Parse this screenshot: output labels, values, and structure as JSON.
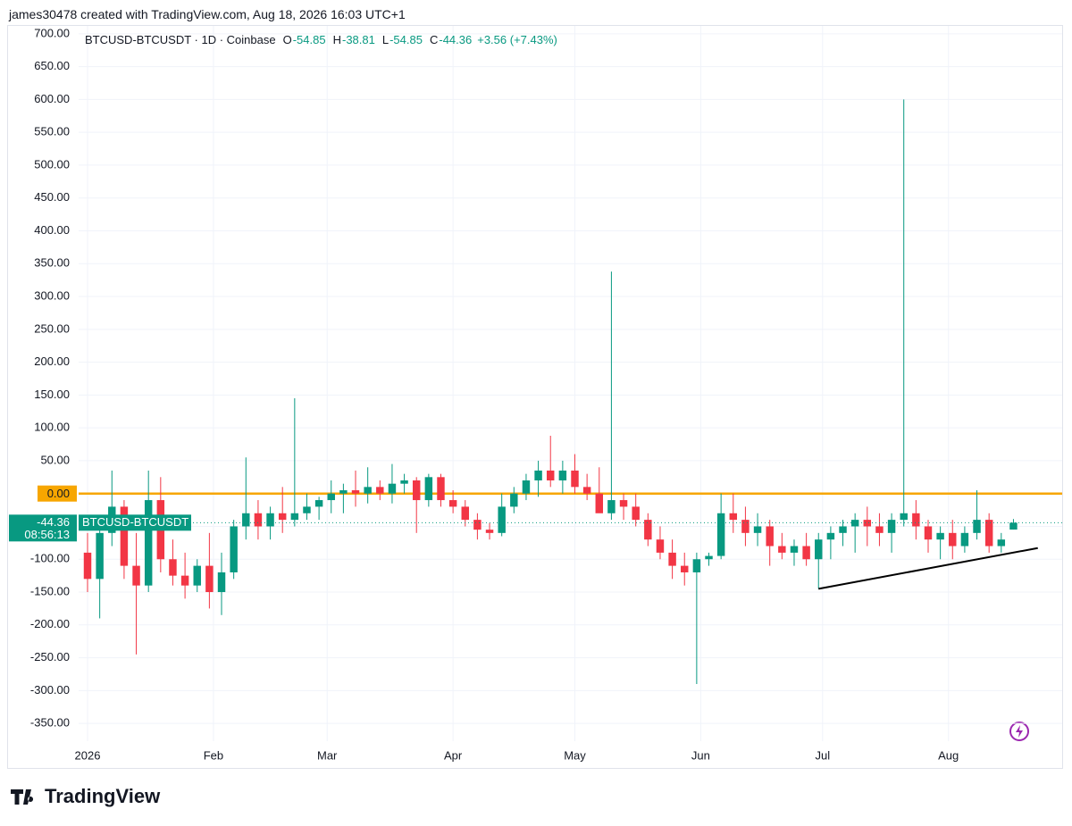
{
  "header": {
    "credit": "james30478 created with TradingView.com, Aug 18, 2026 16:03 UTC+1"
  },
  "footer": {
    "logo": "TradingView"
  },
  "chart_data": {
    "type": "candlestick",
    "title": "BTCUSD-BTCUSDT · 1D · Coinbase",
    "ohlc_labels": [
      "O",
      "H",
      "L",
      "C"
    ],
    "change_label": "+3.56 (+7.43%)",
    "price_tag_name": "BTCUSD-BTCUSDT",
    "countdown": "08:56:13",
    "series": [
      {
        "name": "BTCUSD-BTCUSDT",
        "up_color": "#089981",
        "down_color": "#f23645",
        "x": [
          0,
          3,
          6,
          9,
          12,
          15,
          18,
          21,
          24,
          27,
          30,
          33,
          36,
          39,
          42,
          45,
          48,
          51,
          54,
          57,
          60,
          63,
          66,
          69,
          72,
          75,
          78,
          81,
          84,
          87,
          90,
          93,
          96,
          99,
          102,
          105,
          108,
          111,
          114,
          117,
          120,
          123,
          126,
          129,
          132,
          135,
          138,
          141,
          144,
          147,
          150,
          153,
          156,
          159,
          162,
          165,
          168,
          171,
          174,
          177,
          180,
          183,
          186,
          189,
          192,
          195,
          198,
          201,
          204,
          207,
          210,
          213,
          216,
          219,
          222,
          225,
          228
        ],
        "open": [
          -90,
          -130,
          -60,
          -20,
          -110,
          -140,
          -10,
          -100,
          -125,
          -140,
          -110,
          -150,
          -120,
          -50,
          -30,
          -50,
          -30,
          -40,
          -30,
          -20,
          -10,
          0,
          5,
          0,
          10,
          0,
          15,
          20,
          -10,
          25,
          -10,
          -20,
          -40,
          -55,
          -60,
          -20,
          0,
          20,
          35,
          20,
          35,
          10,
          0,
          -30,
          -10,
          -20,
          -40,
          -70,
          -90,
          -110,
          -120,
          -100,
          -95,
          -30,
          -40,
          -60,
          -50,
          -80,
          -90,
          -80,
          -100,
          -70,
          -60,
          -50,
          -40,
          -50,
          -60,
          -40,
          -30,
          -50,
          -70,
          -60,
          -80,
          -60,
          -40,
          -80,
          -54.85
        ],
        "high": [
          -60,
          -40,
          35,
          -10,
          -60,
          35,
          25,
          -70,
          -90,
          -100,
          -60,
          -90,
          -40,
          55,
          -10,
          -20,
          10,
          145,
          0,
          -5,
          20,
          15,
          35,
          40,
          20,
          45,
          30,
          25,
          30,
          30,
          5,
          -10,
          -30,
          -45,
          0,
          10,
          30,
          50,
          88,
          50,
          60,
          30,
          40,
          338,
          0,
          0,
          -30,
          -50,
          -70,
          -90,
          -90,
          -90,
          0,
          0,
          -20,
          -30,
          -40,
          -60,
          -70,
          -60,
          -60,
          -50,
          -40,
          -30,
          -20,
          -30,
          -30,
          600,
          -10,
          -40,
          -50,
          -40,
          -50,
          5,
          -30,
          -60,
          -38.81
        ],
        "low": [
          -150,
          -190,
          -80,
          -130,
          -245,
          -150,
          -120,
          -140,
          -160,
          -150,
          -175,
          -185,
          -130,
          -70,
          -70,
          -70,
          -60,
          -50,
          -40,
          -40,
          -30,
          -30,
          -20,
          -15,
          -10,
          -15,
          0,
          -60,
          -20,
          -20,
          -30,
          -50,
          -70,
          -70,
          -65,
          -30,
          -10,
          -5,
          10,
          0,
          0,
          -10,
          -20,
          -40,
          -40,
          -50,
          -80,
          -100,
          -130,
          -140,
          -290,
          -110,
          -100,
          -60,
          -80,
          -80,
          -110,
          -100,
          -110,
          -110,
          -145,
          -100,
          -80,
          -90,
          -80,
          -80,
          -90,
          -50,
          -70,
          -90,
          -100,
          -100,
          -90,
          -70,
          -90,
          -90,
          -54.85
        ],
        "close": [
          -130,
          -60,
          -20,
          -110,
          -140,
          -10,
          -100,
          -125,
          -140,
          -110,
          -150,
          -120,
          -50,
          -30,
          -50,
          -30,
          -40,
          -30,
          -20,
          -10,
          0,
          5,
          0,
          10,
          0,
          15,
          20,
          -10,
          25,
          -10,
          -20,
          -40,
          -55,
          -60,
          -20,
          0,
          20,
          35,
          20,
          35,
          10,
          0,
          -30,
          -10,
          -20,
          -40,
          -70,
          -90,
          -110,
          -120,
          -100,
          -95,
          -30,
          -40,
          -60,
          -50,
          -80,
          -90,
          -80,
          -100,
          -70,
          -60,
          -50,
          -40,
          -50,
          -60,
          -40,
          -30,
          -50,
          -70,
          -60,
          -80,
          -60,
          -40,
          -80,
          -70,
          -44.36
        ]
      }
    ],
    "xlim": [
      -2.2,
      240
    ],
    "ylim": [
      -377,
      712
    ],
    "xticks": [
      {
        "value": 0,
        "label": "2026"
      },
      {
        "value": 31,
        "label": "Feb"
      },
      {
        "value": 59,
        "label": "Mar"
      },
      {
        "value": 90,
        "label": "Apr"
      },
      {
        "value": 120,
        "label": "May"
      },
      {
        "value": 151,
        "label": "Jun"
      },
      {
        "value": 181,
        "label": "Jul"
      },
      {
        "value": 212,
        "label": "Aug"
      }
    ],
    "yticks": [
      {
        "value": 700,
        "label": "700.00"
      },
      {
        "value": 650,
        "label": "650.00"
      },
      {
        "value": 600,
        "label": "600.00"
      },
      {
        "value": 550,
        "label": "550.00"
      },
      {
        "value": 500,
        "label": "500.00"
      },
      {
        "value": 450,
        "label": "450.00"
      },
      {
        "value": 400,
        "label": "400.00"
      },
      {
        "value": 350,
        "label": "350.00"
      },
      {
        "value": 300,
        "label": "300.00"
      },
      {
        "value": 250,
        "label": "250.00"
      },
      {
        "value": 200,
        "label": "200.00"
      },
      {
        "value": 150,
        "label": "150.00"
      },
      {
        "value": 100,
        "label": "100.00"
      },
      {
        "value": 50,
        "label": "50.00"
      },
      {
        "value": -50,
        "label": "-50.00"
      },
      {
        "value": -100,
        "label": "-100.00"
      },
      {
        "value": -150,
        "label": "-150.00"
      },
      {
        "value": -200,
        "label": "-200.00"
      },
      {
        "value": -250,
        "label": "-250.00"
      },
      {
        "value": -300,
        "label": "-300.00"
      },
      {
        "value": -350,
        "label": "-350.00"
      }
    ],
    "grid": true,
    "hline": {
      "value": 0,
      "label": "0.00",
      "color": "#f7a600"
    },
    "trendline": {
      "x": [
        180,
        234
      ],
      "y": [
        -145,
        -83
      ],
      "color": "#000000"
    }
  }
}
